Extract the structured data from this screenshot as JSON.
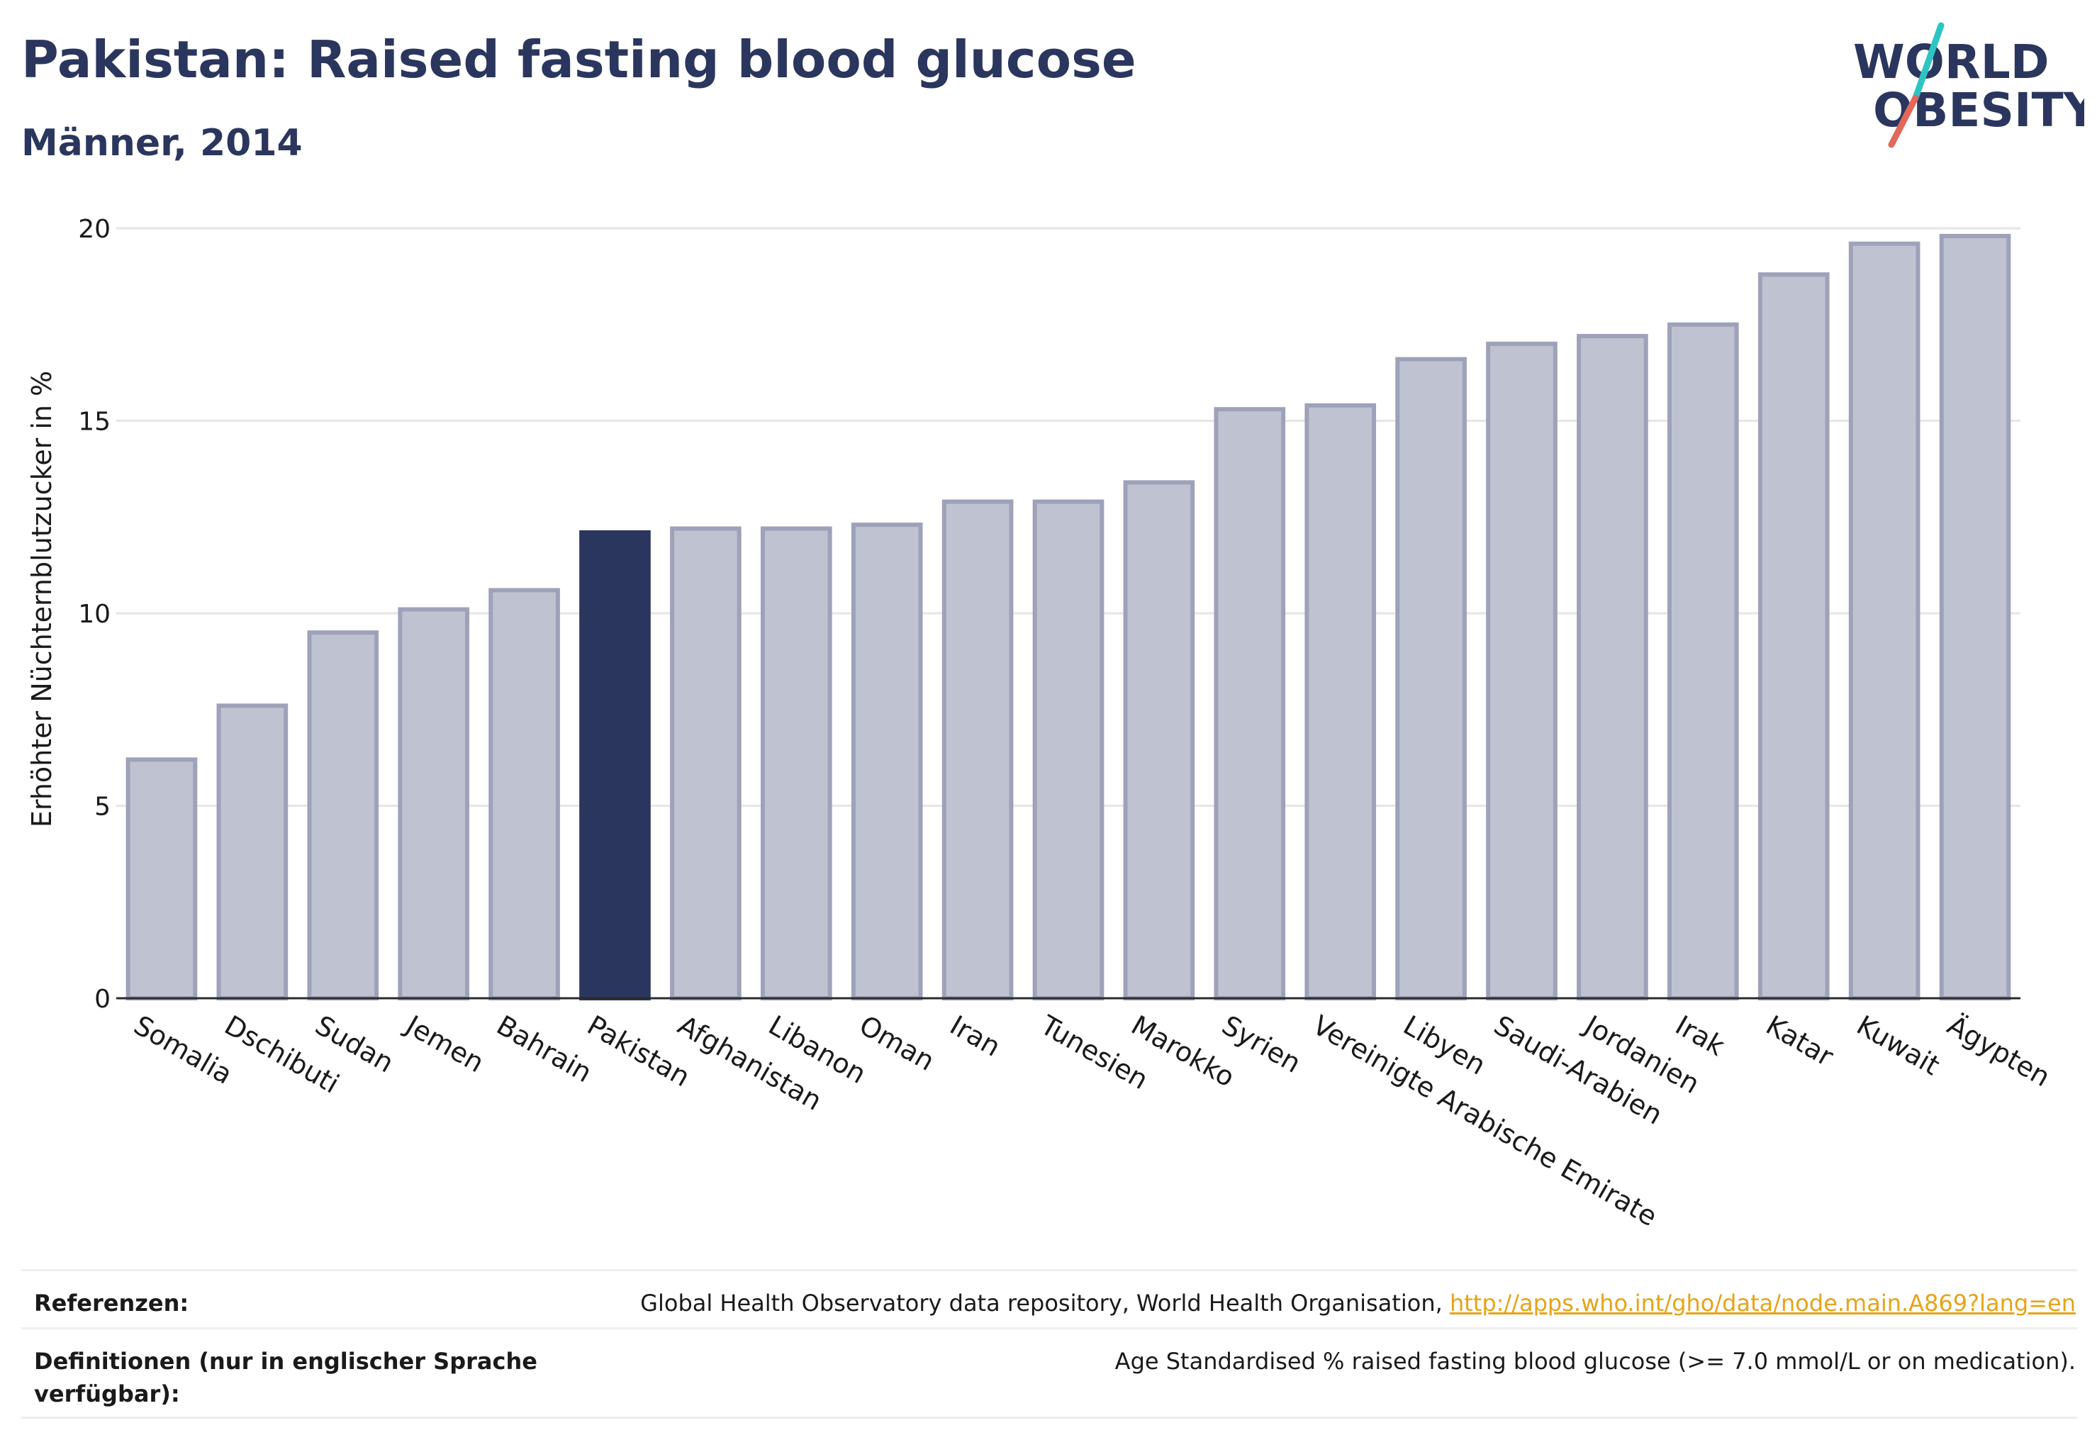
{
  "header": {
    "title": "Pakistan: Raised fasting blood glucose",
    "subtitle": "Männer, 2014"
  },
  "logo": {
    "line1": "WORLD",
    "line2": "OBESITY",
    "text_color": "#2b365e",
    "slash_colors": [
      "#2ec4c4",
      "#e2685a"
    ]
  },
  "chart_data": {
    "type": "bar",
    "ylabel": "Erhöhter Nüchternblutzucker in %",
    "xlabel": "",
    "ylim": [
      0,
      20
    ],
    "yticks": [
      0,
      5,
      10,
      15,
      20
    ],
    "grid": true,
    "highlight": "Pakistan",
    "colors": {
      "bar": "#bfc2d0",
      "bar_stroke": "#9ea2b9",
      "highlight": "#2b365e"
    },
    "categories": [
      "Somalia",
      "Dschibuti",
      "Sudan",
      "Jemen",
      "Bahrain",
      "Pakistan",
      "Afghanistan",
      "Libanon",
      "Oman",
      "Iran",
      "Tunesien",
      "Marokko",
      "Syrien",
      "Vereinigte Arabische Emirate",
      "Libyen",
      "Saudi-Arabien",
      "Jordanien",
      "Irak",
      "Katar",
      "Kuwait",
      "Ägypten"
    ],
    "values": [
      6.2,
      7.6,
      9.5,
      10.1,
      10.6,
      12.1,
      12.2,
      12.2,
      12.3,
      12.9,
      12.9,
      13.4,
      15.3,
      15.4,
      16.6,
      17.0,
      17.2,
      17.5,
      18.8,
      19.6,
      19.8
    ]
  },
  "footer": {
    "references_label": "Referenzen:",
    "references_text": "Global Health Observatory data repository, World Health Organisation, ",
    "references_link": "http://apps.who.int/gho/data/node.main.A869?lang=en",
    "definitions_label": "Definitionen (nur in englischer Sprache verfügbar):",
    "definitions_text": "Age Standardised % raised fasting blood glucose (>= 7.0 mmol/L or on medication)."
  }
}
